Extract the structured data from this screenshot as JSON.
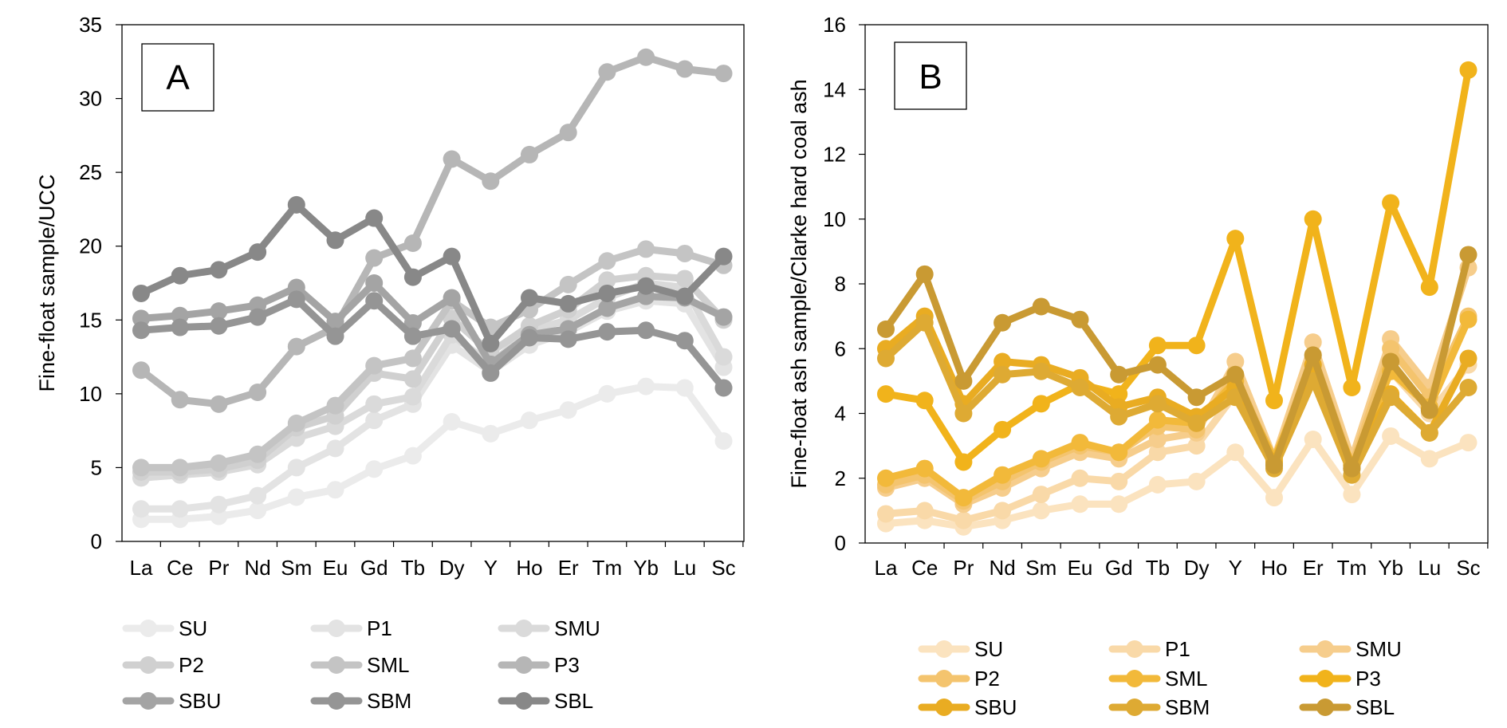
{
  "chart_data": [
    {
      "type": "line",
      "panel_label": "A",
      "ylabel": "Fine-float sample/UCC",
      "xlabel": "",
      "ylim": [
        0,
        35
      ],
      "yticks": [
        0,
        5,
        10,
        15,
        20,
        25,
        30,
        35
      ],
      "categories": [
        "La",
        "Ce",
        "Pr",
        "Nd",
        "Sm",
        "Eu",
        "Gd",
        "Tb",
        "Dy",
        "Y",
        "Ho",
        "Er",
        "Tm",
        "Yb",
        "Lu",
        "Sc"
      ],
      "legend_position": "bottom",
      "series": [
        {
          "name": "SU",
          "color": "#ebebeb",
          "values": [
            1.5,
            1.5,
            1.7,
            2.1,
            3.0,
            3.5,
            4.9,
            5.8,
            8.1,
            7.3,
            8.2,
            8.9,
            10.0,
            10.5,
            10.4,
            6.8
          ]
        },
        {
          "name": "P1",
          "color": "#e3e3e3",
          "values": [
            2.2,
            2.2,
            2.5,
            3.1,
            5.0,
            6.3,
            8.2,
            9.3,
            13.3,
            11.5,
            13.3,
            14.2,
            15.6,
            16.3,
            16.1,
            11.8
          ]
        },
        {
          "name": "SMU",
          "color": "#dadada",
          "values": [
            4.3,
            4.5,
            4.7,
            5.2,
            7.0,
            7.8,
            9.3,
            9.8,
            14.0,
            12.0,
            14.3,
            15.0,
            16.5,
            17.5,
            17.2,
            12.5
          ]
        },
        {
          "name": "P2",
          "color": "#d0d0d0",
          "values": [
            4.7,
            4.7,
            4.9,
            5.5,
            7.7,
            8.5,
            11.4,
            11.0,
            15.1,
            12.8,
            14.6,
            15.7,
            17.7,
            18.0,
            17.8,
            15.0
          ]
        },
        {
          "name": "SML",
          "color": "#c4c4c4",
          "values": [
            5.0,
            5.0,
            5.3,
            5.9,
            8.0,
            9.2,
            11.9,
            12.4,
            16.3,
            14.5,
            15.7,
            17.4,
            19.0,
            19.8,
            19.5,
            18.7
          ]
        },
        {
          "name": "P3",
          "color": "#b6b6b6",
          "values": [
            11.6,
            9.6,
            9.3,
            10.1,
            13.2,
            14.5,
            19.2,
            20.2,
            25.9,
            24.4,
            26.2,
            27.7,
            31.8,
            32.8,
            32.0,
            31.7
          ]
        },
        {
          "name": "SBU",
          "color": "#a4a4a4",
          "values": [
            15.1,
            15.3,
            15.6,
            16.0,
            17.2,
            14.9,
            17.5,
            14.8,
            16.5,
            12.0,
            14.0,
            14.4,
            15.8,
            16.6,
            16.5,
            15.2
          ]
        },
        {
          "name": "SBM",
          "color": "#959595",
          "values": [
            14.3,
            14.5,
            14.6,
            15.2,
            16.4,
            13.9,
            16.3,
            13.9,
            14.4,
            11.4,
            13.8,
            13.7,
            14.2,
            14.3,
            13.6,
            10.4
          ]
        },
        {
          "name": "SBL",
          "color": "#888888",
          "values": [
            16.8,
            18.0,
            18.4,
            19.6,
            22.8,
            20.4,
            21.9,
            17.9,
            19.3,
            13.4,
            16.5,
            16.1,
            16.8,
            17.3,
            16.6,
            19.3
          ]
        }
      ]
    },
    {
      "type": "line",
      "panel_label": "B",
      "ylabel": "Fine-float ash sample/Clarke hard coal ash",
      "xlabel": "",
      "ylim": [
        0,
        16
      ],
      "yticks": [
        0,
        2,
        4,
        6,
        8,
        10,
        12,
        14,
        16
      ],
      "categories": [
        "La",
        "Ce",
        "Pr",
        "Nd",
        "Sm",
        "Eu",
        "Gd",
        "Tb",
        "Dy",
        "Y",
        "Ho",
        "Er",
        "Tm",
        "Yb",
        "Lu",
        "Sc"
      ],
      "legend_position": "bottom",
      "series": [
        {
          "name": "SU",
          "color": "#fbe3bf",
          "values": [
            0.6,
            0.7,
            0.5,
            0.7,
            1.0,
            1.2,
            1.2,
            1.8,
            1.9,
            2.8,
            1.4,
            3.2,
            1.5,
            3.3,
            2.6,
            3.1
          ]
        },
        {
          "name": "P1",
          "color": "#f9d9a8",
          "values": [
            0.9,
            1.0,
            0.7,
            1.0,
            1.5,
            2.0,
            1.9,
            2.8,
            3.0,
            4.6,
            2.4,
            5.3,
            2.5,
            5.3,
            4.0,
            5.5
          ]
        },
        {
          "name": "SMU",
          "color": "#f6cd8c",
          "values": [
            1.7,
            2.0,
            1.2,
            1.7,
            2.3,
            2.8,
            2.6,
            3.2,
            3.4,
            5.6,
            2.6,
            6.2,
            2.6,
            6.3,
            4.8,
            8.5
          ]
        },
        {
          "name": "P2",
          "color": "#f4c46e",
          "values": [
            1.8,
            2.1,
            1.3,
            1.9,
            2.5,
            3.0,
            2.8,
            3.6,
            3.5,
            5.2,
            2.5,
            5.8,
            2.4,
            6.0,
            4.5,
            7.0
          ]
        },
        {
          "name": "SML",
          "color": "#f2b93a",
          "values": [
            2.0,
            2.3,
            1.4,
            2.1,
            2.6,
            3.1,
            2.8,
            3.8,
            3.7,
            5.0,
            2.6,
            5.5,
            2.3,
            5.3,
            4.2,
            6.9
          ]
        },
        {
          "name": "P3",
          "color": "#f1b31b",
          "values": [
            4.6,
            4.4,
            2.5,
            3.5,
            4.3,
            4.9,
            4.6,
            6.1,
            6.1,
            9.4,
            4.4,
            10.0,
            4.8,
            10.5,
            7.9,
            14.6
          ]
        },
        {
          "name": "SBU",
          "color": "#e9ac22",
          "values": [
            6.0,
            7.0,
            4.3,
            5.6,
            5.5,
            5.1,
            4.2,
            4.5,
            3.9,
            4.8,
            2.5,
            5.5,
            2.4,
            4.6,
            3.4,
            5.7
          ]
        },
        {
          "name": "SBM",
          "color": "#deaa33",
          "values": [
            5.7,
            6.8,
            4.0,
            5.2,
            5.3,
            4.8,
            3.9,
            4.3,
            3.7,
            4.5,
            2.3,
            5.0,
            2.1,
            4.5,
            3.4,
            4.8
          ]
        },
        {
          "name": "SBL",
          "color": "#c99a33",
          "values": [
            6.6,
            8.3,
            5.0,
            6.8,
            7.3,
            6.9,
            5.2,
            5.5,
            4.5,
            5.2,
            2.4,
            5.8,
            2.3,
            5.6,
            4.1,
            8.9
          ]
        }
      ]
    }
  ]
}
